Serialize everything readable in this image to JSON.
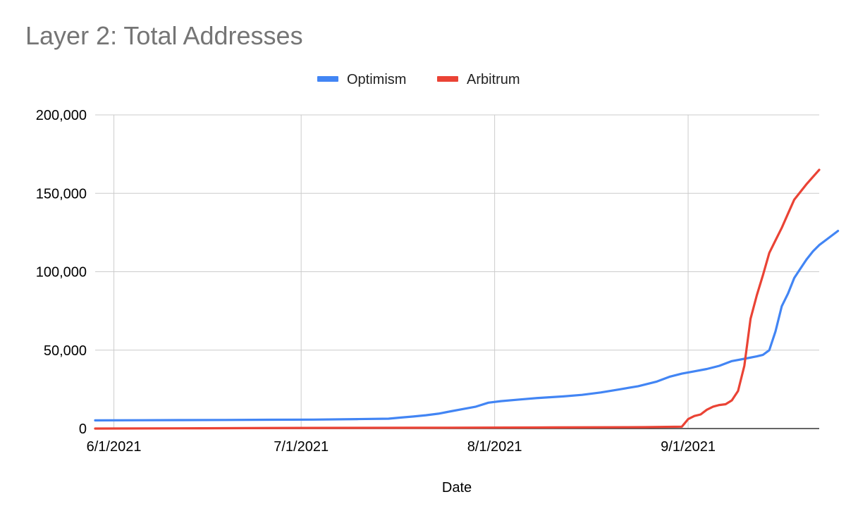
{
  "chart_data": {
    "type": "line",
    "title": "Layer 2: Total Addresses",
    "xlabel": "Date",
    "ylabel": "",
    "x_tick_labels": [
      "6/1/2021",
      "7/1/2021",
      "8/1/2021",
      "9/1/2021"
    ],
    "y_tick_labels": [
      "0",
      "50,000",
      "100,000",
      "150,000",
      "200,000"
    ],
    "ylim": [
      0,
      200000
    ],
    "xlim": [
      "2021-05-29",
      "2021-09-22"
    ],
    "grid": true,
    "legend_position": "top-center",
    "series": [
      {
        "name": "Optimism",
        "color": "#4285f4",
        "points": [
          [
            "2021-05-29",
            5200
          ],
          [
            "2021-06-05",
            5300
          ],
          [
            "2021-06-12",
            5400
          ],
          [
            "2021-06-19",
            5500
          ],
          [
            "2021-06-26",
            5600
          ],
          [
            "2021-07-03",
            5700
          ],
          [
            "2021-07-10",
            6000
          ],
          [
            "2021-07-15",
            6300
          ],
          [
            "2021-07-17",
            7000
          ],
          [
            "2021-07-19",
            7700
          ],
          [
            "2021-07-21",
            8500
          ],
          [
            "2021-07-23",
            9500
          ],
          [
            "2021-07-25",
            11000
          ],
          [
            "2021-07-27",
            12500
          ],
          [
            "2021-07-29",
            14000
          ],
          [
            "2021-07-31",
            16500
          ],
          [
            "2021-08-02",
            17500
          ],
          [
            "2021-08-05",
            18500
          ],
          [
            "2021-08-08",
            19500
          ],
          [
            "2021-08-12",
            20500
          ],
          [
            "2021-08-15",
            21500
          ],
          [
            "2021-08-18",
            23000
          ],
          [
            "2021-08-21",
            25000
          ],
          [
            "2021-08-24",
            27000
          ],
          [
            "2021-08-27",
            30000
          ],
          [
            "2021-08-29",
            33000
          ],
          [
            "2021-08-31",
            35000
          ],
          [
            "2021-09-02",
            36500
          ],
          [
            "2021-09-04",
            38000
          ],
          [
            "2021-09-06",
            40000
          ],
          [
            "2021-09-08",
            43000
          ],
          [
            "2021-09-10",
            44500
          ],
          [
            "2021-09-12",
            46000
          ],
          [
            "2021-09-13",
            47000
          ],
          [
            "2021-09-14",
            50000
          ],
          [
            "2021-09-15",
            62000
          ],
          [
            "2021-09-16",
            78000
          ],
          [
            "2021-09-17",
            86000
          ],
          [
            "2021-09-18",
            96000
          ],
          [
            "2021-09-19",
            102000
          ],
          [
            "2021-09-20",
            108000
          ],
          [
            "2021-09-21",
            113000
          ],
          [
            "2021-09-22",
            117000
          ],
          [
            "2021-09-23",
            120000
          ],
          [
            "2021-09-25",
            126000
          ]
        ]
      },
      {
        "name": "Arbitrum",
        "color": "#ea4335",
        "points": [
          [
            "2021-05-29",
            0
          ],
          [
            "2021-06-15",
            200
          ],
          [
            "2021-07-01",
            400
          ],
          [
            "2021-07-20",
            500
          ],
          [
            "2021-08-10",
            700
          ],
          [
            "2021-08-25",
            900
          ],
          [
            "2021-08-31",
            1200
          ],
          [
            "2021-09-01",
            6000
          ],
          [
            "2021-09-02",
            8000
          ],
          [
            "2021-09-03",
            9000
          ],
          [
            "2021-09-04",
            12000
          ],
          [
            "2021-09-05",
            14000
          ],
          [
            "2021-09-06",
            15000
          ],
          [
            "2021-09-07",
            15500
          ],
          [
            "2021-09-08",
            18000
          ],
          [
            "2021-09-09",
            24000
          ],
          [
            "2021-09-10",
            40000
          ],
          [
            "2021-09-11",
            70000
          ],
          [
            "2021-09-12",
            85000
          ],
          [
            "2021-09-13",
            98000
          ],
          [
            "2021-09-14",
            112000
          ],
          [
            "2021-09-15",
            120000
          ],
          [
            "2021-09-16",
            128000
          ],
          [
            "2021-09-17",
            137000
          ],
          [
            "2021-09-18",
            146000
          ],
          [
            "2021-09-20",
            156000
          ],
          [
            "2021-09-22",
            165000
          ]
        ]
      }
    ]
  }
}
